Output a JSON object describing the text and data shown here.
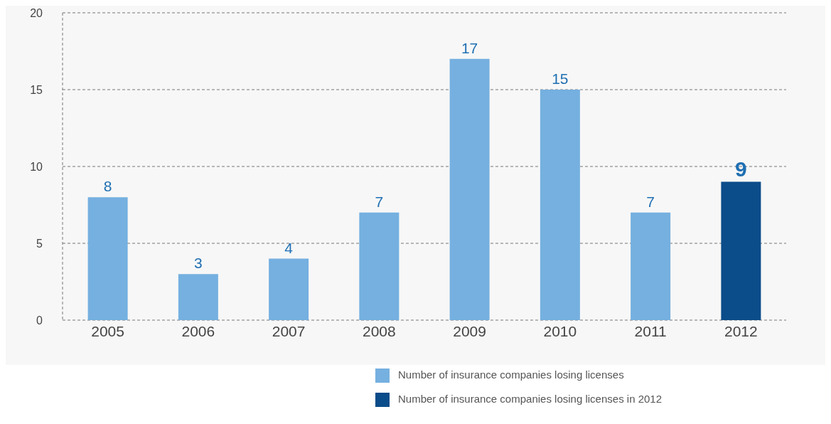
{
  "chart_data": {
    "type": "bar",
    "categories": [
      "2005",
      "2006",
      "2007",
      "2008",
      "2009",
      "2010",
      "2011",
      "2012"
    ],
    "series": [
      {
        "name": "Number of insurance companies losing licenses",
        "color": "#75b0e0",
        "values": [
          8,
          3,
          4,
          7,
          17,
          15,
          7,
          null
        ]
      },
      {
        "name": "Number of insurance companies losing licenses in 2012",
        "color": "#0b4c8a",
        "values": [
          null,
          null,
          null,
          null,
          null,
          null,
          null,
          9
        ]
      }
    ],
    "stacked": true,
    "ylim": [
      0,
      20
    ],
    "yticks": [
      0,
      5,
      10,
      15,
      20
    ],
    "grid": "y",
    "data_labels": true,
    "legend": "bottom"
  }
}
